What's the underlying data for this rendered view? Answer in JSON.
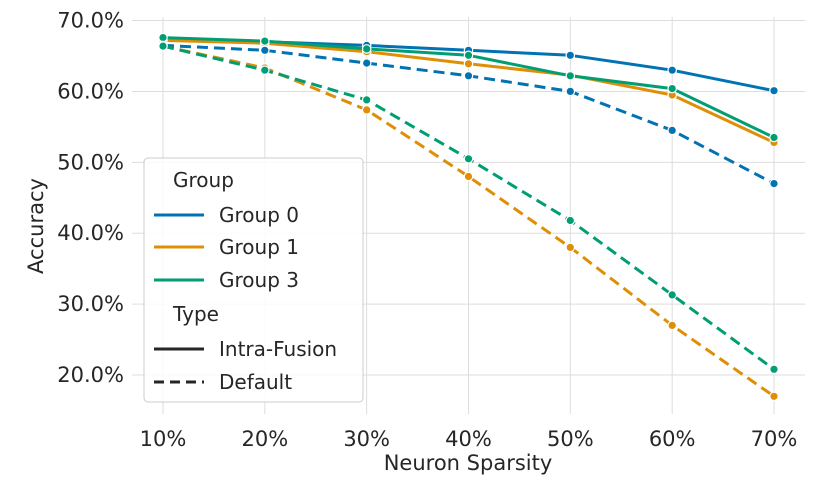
{
  "chart_data": {
    "type": "line",
    "title": "",
    "xlabel": "Neuron Sparsity",
    "ylabel": "Accuracy",
    "categories": [
      "10%",
      "20%",
      "30%",
      "40%",
      "50%",
      "60%",
      "70%"
    ],
    "y_ticks": [
      20,
      30,
      40,
      50,
      60,
      70
    ],
    "y_tick_labels": [
      "20.0%",
      "30.0%",
      "40.0%",
      "50.0%",
      "60.0%",
      "70.0%"
    ],
    "ylim": [
      14.5,
      70.5
    ],
    "grid": true,
    "legend_position": "lower-left",
    "legend": {
      "group_title": "Group",
      "type_title": "Type",
      "groups": [
        "Group 0",
        "Group 1",
        "Group 3"
      ],
      "types": [
        "Intra-Fusion",
        "Default"
      ]
    },
    "colors": {
      "Group 0": "#0173b2",
      "Group 1": "#de8f05",
      "Group 3": "#029e73"
    },
    "series": [
      {
        "name": "Group 0 Intra-Fusion",
        "group": "Group 0",
        "type": "Intra-Fusion",
        "values": [
          67.5,
          67.0,
          66.5,
          65.8,
          65.1,
          63.0,
          60.1
        ]
      },
      {
        "name": "Group 1 Intra-Fusion",
        "group": "Group 1",
        "type": "Intra-Fusion",
        "values": [
          67.2,
          66.8,
          65.6,
          63.9,
          62.3,
          59.5,
          52.8
        ]
      },
      {
        "name": "Group 3 Intra-Fusion",
        "group": "Group 3",
        "type": "Intra-Fusion",
        "values": [
          67.6,
          67.1,
          66.0,
          65.1,
          62.2,
          60.4,
          53.5
        ]
      },
      {
        "name": "Group 0 Default",
        "group": "Group 0",
        "type": "Default",
        "values": [
          66.5,
          65.8,
          64.0,
          62.2,
          60.0,
          54.5,
          47.0
        ]
      },
      {
        "name": "Group 1 Default",
        "group": "Group 1",
        "type": "Default",
        "values": [
          66.4,
          63.3,
          57.4,
          48.0,
          38.0,
          27.0,
          17.0
        ]
      },
      {
        "name": "Group 3 Default",
        "group": "Group 3",
        "type": "Default",
        "values": [
          66.4,
          63.0,
          58.8,
          50.5,
          41.8,
          31.3,
          20.8
        ]
      }
    ]
  }
}
